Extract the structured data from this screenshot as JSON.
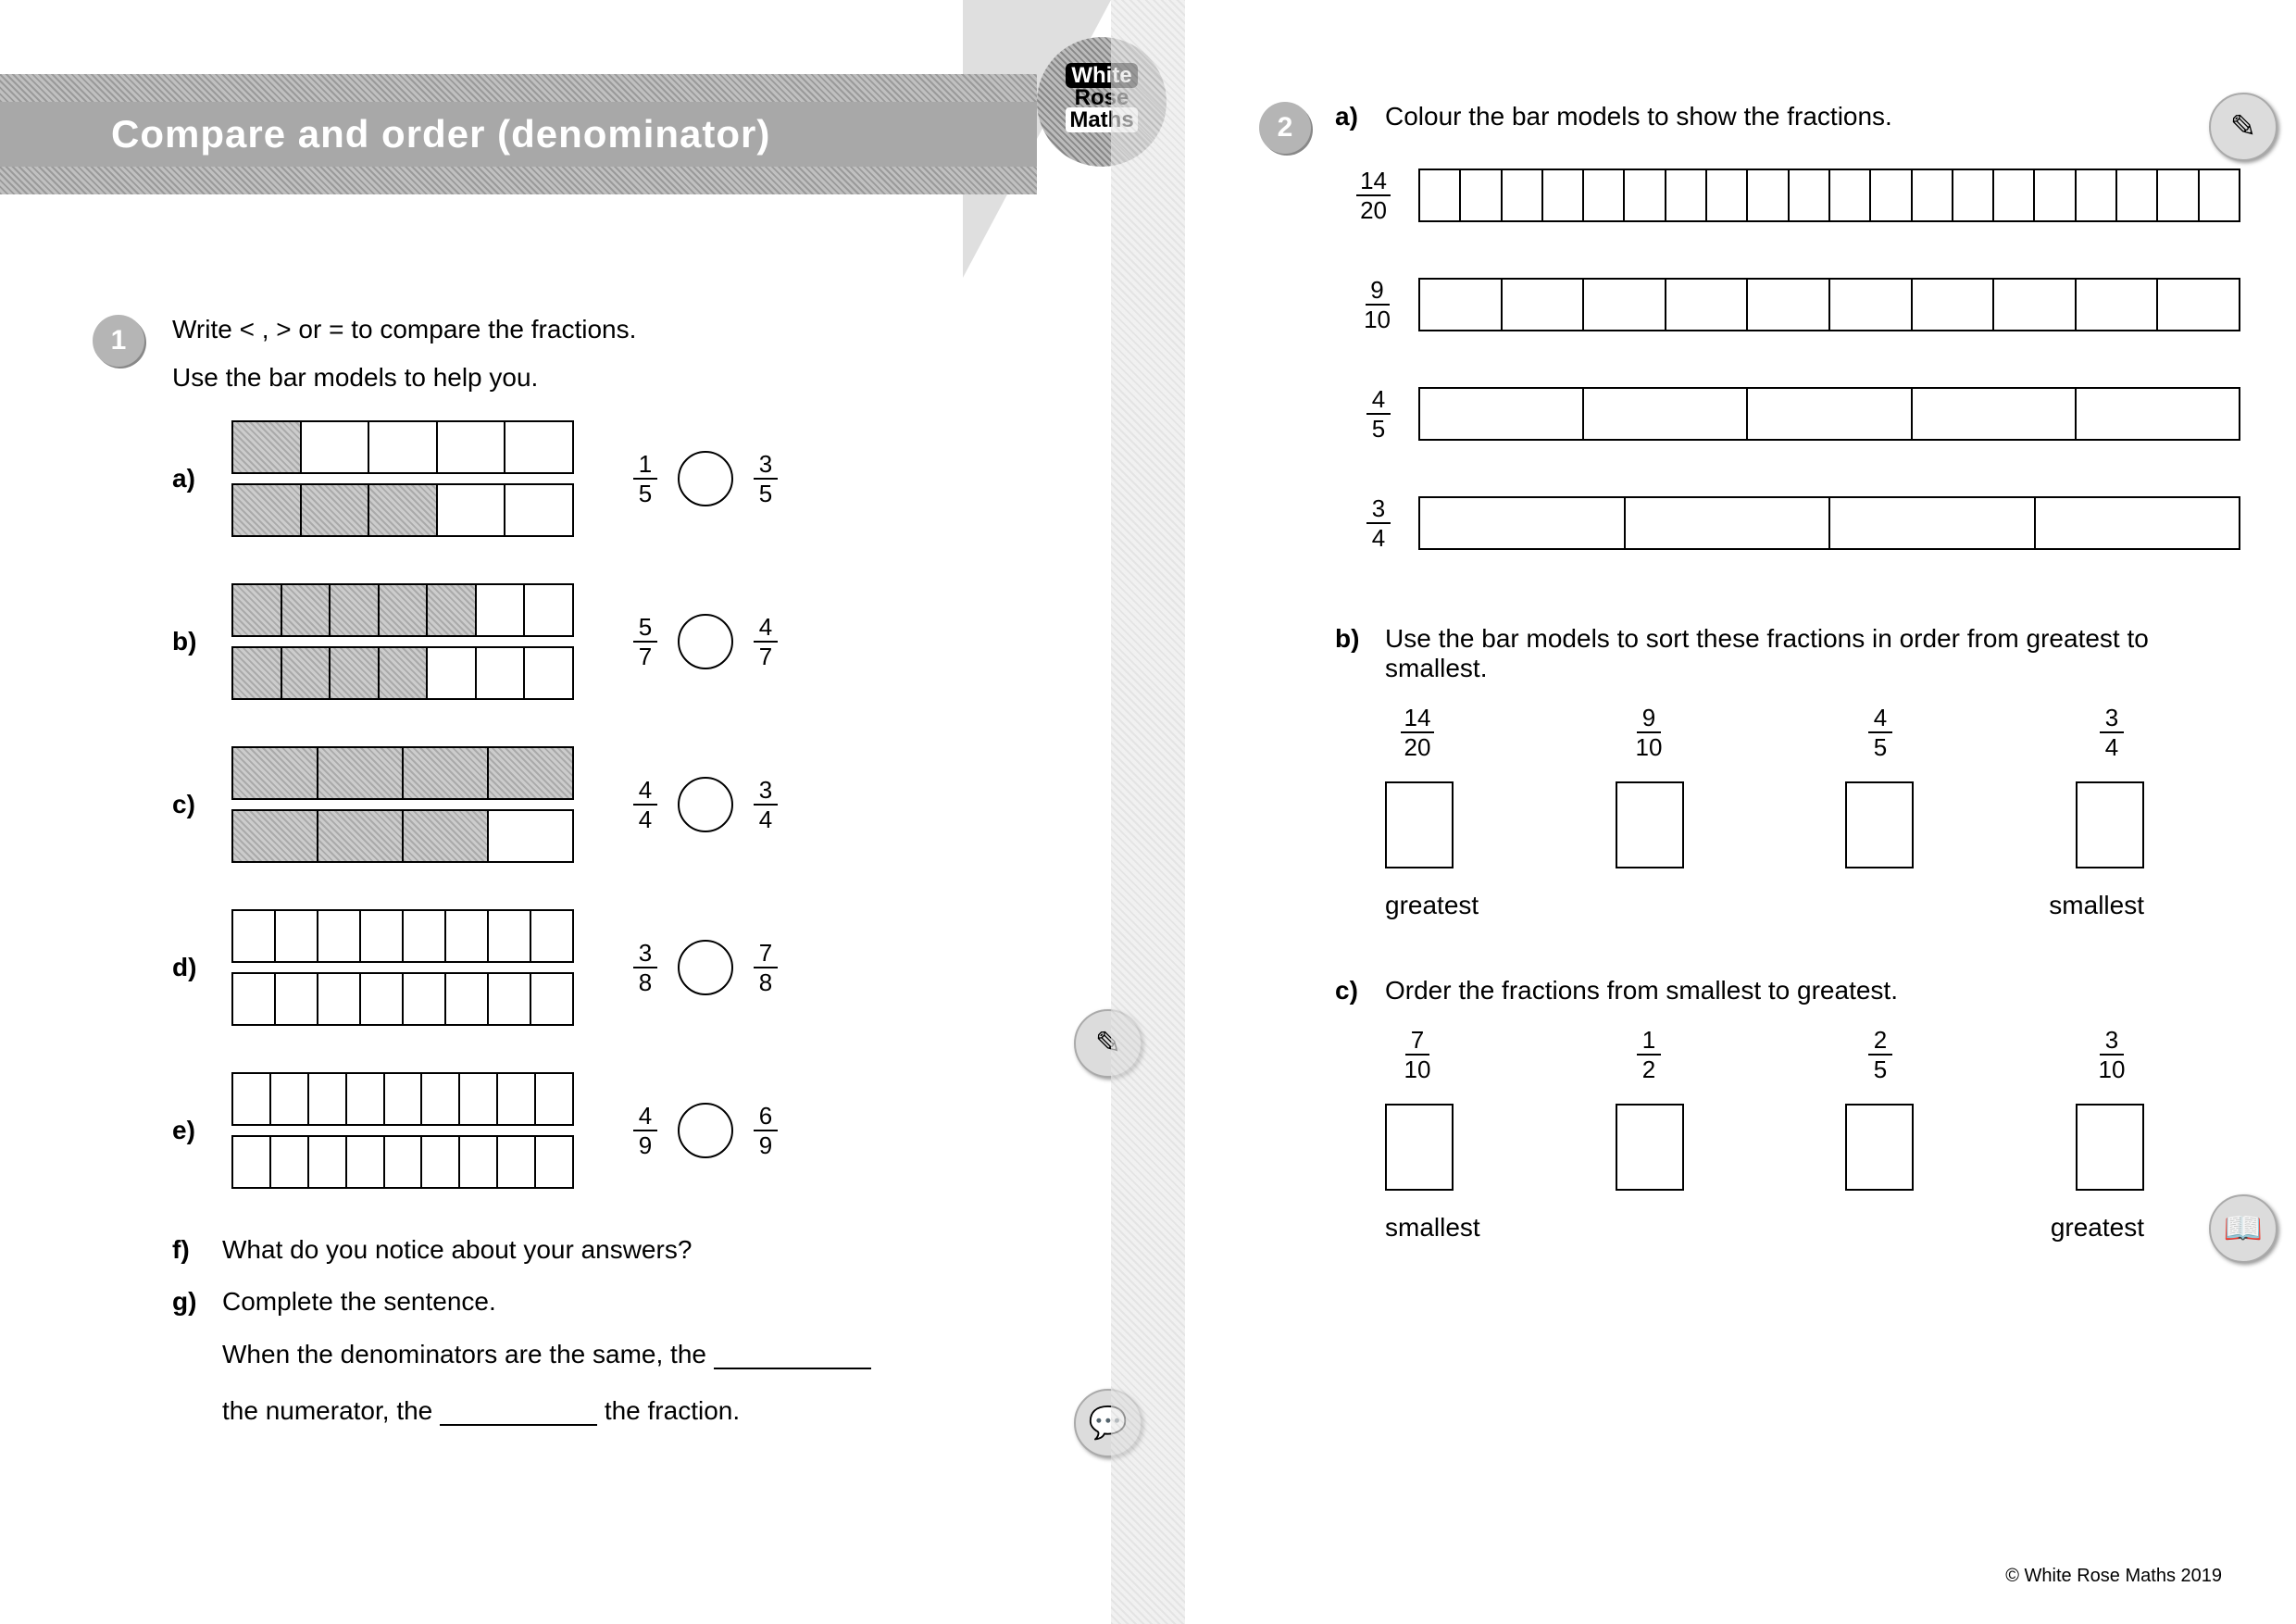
{
  "title": "Compare and order (denominator)",
  "logo": {
    "l1": "White",
    "l2": "Rose",
    "l3": "Maths"
  },
  "copyright": "© White Rose Maths 2019",
  "q1": {
    "num": "1",
    "intro1": "Write < , > or = to compare the fractions.",
    "intro2": "Use the bar models to help you.",
    "rows": [
      {
        "lbl": "a)",
        "cells": 5,
        "fill1": 1,
        "fill2": 3,
        "f1n": "1",
        "f1d": "5",
        "f2n": "3",
        "f2d": "5"
      },
      {
        "lbl": "b)",
        "cells": 7,
        "fill1": 5,
        "fill2": 4,
        "f1n": "5",
        "f1d": "7",
        "f2n": "4",
        "f2d": "7"
      },
      {
        "lbl": "c)",
        "cells": 4,
        "fill1": 4,
        "fill2": 3,
        "f1n": "4",
        "f1d": "4",
        "f2n": "3",
        "f2d": "4"
      },
      {
        "lbl": "d)",
        "cells": 8,
        "fill1": 0,
        "fill2": 0,
        "f1n": "3",
        "f1d": "8",
        "f2n": "7",
        "f2d": "8"
      },
      {
        "lbl": "e)",
        "cells": 9,
        "fill1": 0,
        "fill2": 0,
        "f1n": "4",
        "f1d": "9",
        "f2n": "6",
        "f2d": "9"
      }
    ],
    "f_lbl": "f)",
    "f_txt": "What do you notice about your answers?",
    "g_lbl": "g)",
    "g_txt": "Complete the sentence.",
    "g_line1a": "When the denominators are the same, the ",
    "g_line2a": "the numerator, the ",
    "g_line2b": " the fraction."
  },
  "q2": {
    "num": "2",
    "a_lbl": "a)",
    "a_txt": "Colour the bar models to show the fractions.",
    "bars": [
      {
        "n": "14",
        "d": "20",
        "cells": 20
      },
      {
        "n": "9",
        "d": "10",
        "cells": 10
      },
      {
        "n": "4",
        "d": "5",
        "cells": 5
      },
      {
        "n": "3",
        "d": "4",
        "cells": 4
      }
    ],
    "b_lbl": "b)",
    "b_txt": "Use the bar models to sort these fractions in order from greatest to smallest.",
    "b_fracs": [
      {
        "n": "14",
        "d": "20"
      },
      {
        "n": "9",
        "d": "10"
      },
      {
        "n": "4",
        "d": "5"
      },
      {
        "n": "3",
        "d": "4"
      }
    ],
    "b_left": "greatest",
    "b_right": "smallest",
    "c_lbl": "c)",
    "c_txt": "Order the fractions from smallest to greatest.",
    "c_fracs": [
      {
        "n": "7",
        "d": "10"
      },
      {
        "n": "1",
        "d": "2"
      },
      {
        "n": "2",
        "d": "5"
      },
      {
        "n": "3",
        "d": "10"
      }
    ],
    "c_left": "smallest",
    "c_right": "greatest"
  }
}
